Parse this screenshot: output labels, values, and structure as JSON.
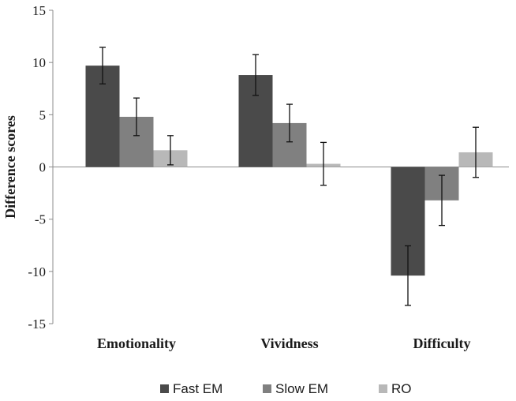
{
  "chart_data": {
    "type": "bar",
    "title": "",
    "xlabel": "",
    "ylabel": "Difference scores",
    "ylim": [
      -15,
      15
    ],
    "yticks": [
      15,
      10,
      5,
      0,
      -5,
      -10,
      -15
    ],
    "grid": false,
    "legend_position": "bottom",
    "categories": [
      "Emotionality",
      "Vividness",
      "Difficulty"
    ],
    "series": [
      {
        "name": "Fast EM",
        "color": "#4a4a4a",
        "values": [
          9.7,
          8.8,
          -10.4
        ],
        "errors": [
          1.75,
          1.95,
          2.85
        ]
      },
      {
        "name": "Slow EM",
        "color": "#808080",
        "values": [
          4.8,
          4.2,
          -3.2
        ],
        "errors": [
          1.8,
          1.8,
          2.4
        ]
      },
      {
        "name": "RO",
        "color": "#b8b8b8",
        "values": [
          1.6,
          0.3,
          1.4
        ],
        "errors": [
          1.4,
          2.05,
          2.4
        ]
      }
    ]
  }
}
